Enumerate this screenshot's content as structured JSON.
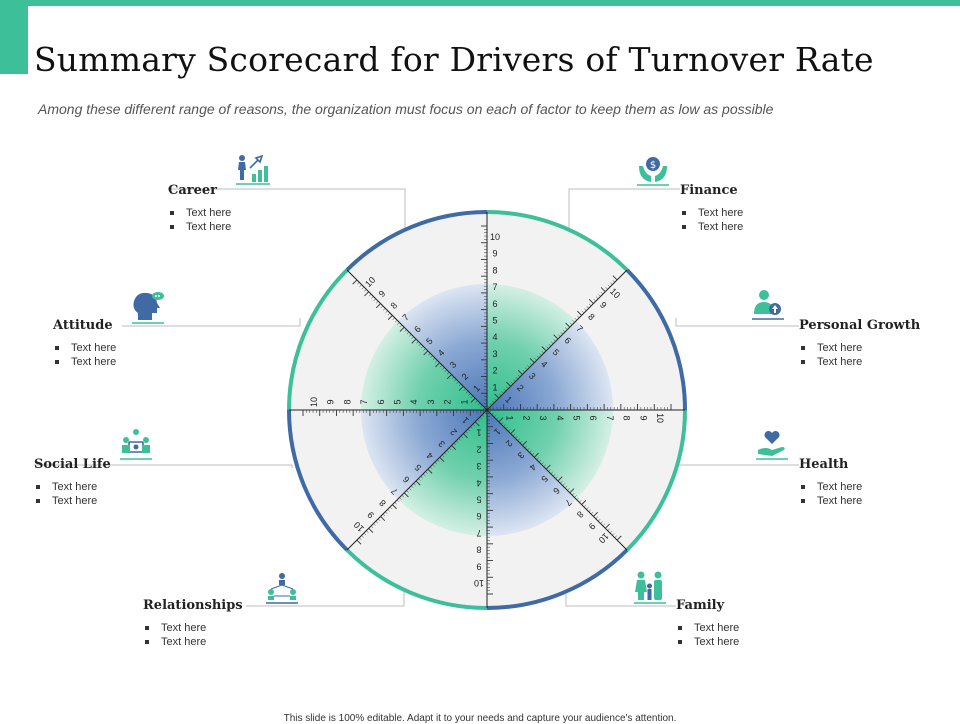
{
  "title": "Summary Scorecard for Drivers of Turnover Rate",
  "subtitle": "Among these different range of reasons, the organization  must focus on each of factor to keep them as low  as possible",
  "footer": "This slide is 100% editable.  Adapt it to your needs and capture your audience's attention.",
  "colors": {
    "green": "#3dbf9a",
    "blue": "#3f6aa5",
    "gray": "#f2f2f2"
  },
  "scale_ticks": [
    "1",
    "2",
    "3",
    "4",
    "5",
    "6",
    "7",
    "8",
    "9",
    "10"
  ],
  "factors": [
    {
      "name": "Career",
      "icon": "career-growth-icon",
      "bullets": [
        "Text here",
        "Text here"
      ]
    },
    {
      "name": "Finance",
      "icon": "money-hands-icon",
      "bullets": [
        "Text here",
        "Text here"
      ]
    },
    {
      "name": "Personal Growth",
      "icon": "person-upgrade-icon",
      "bullets": [
        "Text here",
        "Text here"
      ]
    },
    {
      "name": "Health",
      "icon": "heart-hand-icon",
      "bullets": [
        "Text here",
        "Text here"
      ]
    },
    {
      "name": "Family",
      "icon": "family-icon",
      "bullets": [
        "Text here",
        "Text here"
      ]
    },
    {
      "name": "Relationships",
      "icon": "network-people-icon",
      "bullets": [
        "Text here",
        "Text here"
      ]
    },
    {
      "name": "Social Life",
      "icon": "social-group-icon",
      "bullets": [
        "Text here",
        "Text here"
      ]
    },
    {
      "name": "Attitude",
      "icon": "head-thought-icon",
      "bullets": [
        "Text here",
        "Text here"
      ]
    }
  ]
}
